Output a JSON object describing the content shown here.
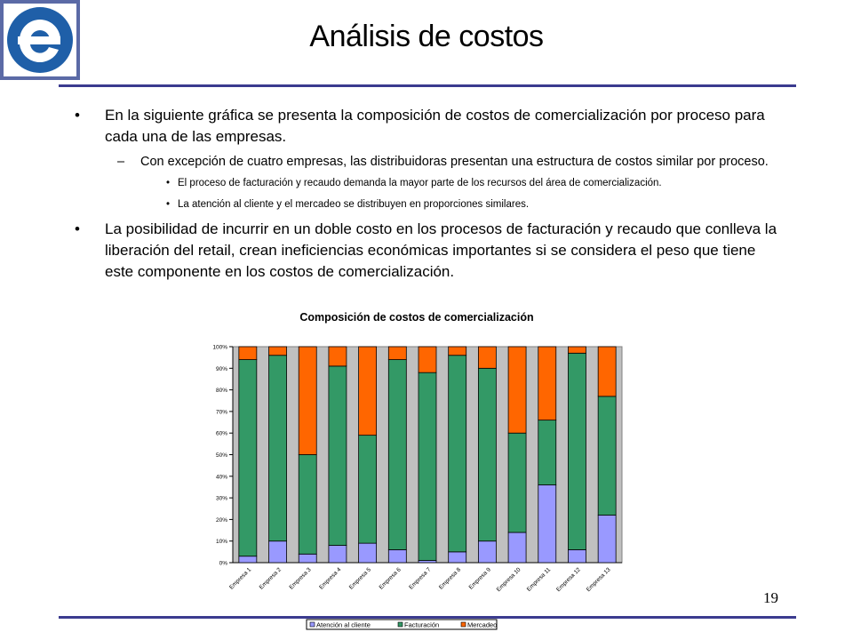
{
  "slide": {
    "title": "Análisis de costos",
    "page_number": "19",
    "bullets": [
      {
        "level": 1,
        "text": "En la siguiente gráfica se presenta la composición de costos de comercialización por proceso para cada una de las empresas."
      },
      {
        "level": 2,
        "text": "Con excepción de cuatro empresas, las distribuidoras presentan una estructura de costos similar por proceso."
      },
      {
        "level": 3,
        "text": "El proceso de facturación y recaudo demanda la mayor parte de los recursos del área de comercialización."
      },
      {
        "level": 3,
        "text": "La atención al cliente y el mercadeo se distribuyen en proporciones similares."
      },
      {
        "level": 1,
        "text": "La posibilidad de incurrir en un doble costo en los procesos de facturación y recaudo que conlleva la liberación del retail, crean ineficiencias económicas importantes si se considera el peso que tiene este componente en los costos de comercialización."
      }
    ],
    "colors": {
      "rule": "#3b3b8f",
      "logo_blue": "#1f5fa8",
      "logo_frame": "#5b6aa6"
    }
  },
  "chart_data": {
    "type": "bar",
    "stacked": true,
    "title": "Composición de costos de comercialización",
    "categories": [
      "Empresa 1",
      "Empresa 2",
      "Empresa 3",
      "Empresa 4",
      "Empresa 5",
      "Empresa 6",
      "Empresa 7",
      "Empresa 8",
      "Empresa 9",
      "Empresa 10",
      "Empresa 11",
      "Empresa 12",
      "Empresa 13"
    ],
    "series": [
      {
        "name": "Atención al cliente",
        "color": "#9999ff",
        "values": [
          3,
          10,
          4,
          8,
          9,
          6,
          1,
          5,
          10,
          14,
          36,
          6,
          22
        ]
      },
      {
        "name": "Facturación",
        "color": "#339966",
        "values": [
          91,
          86,
          46,
          83,
          50,
          88,
          87,
          91,
          80,
          46,
          30,
          91,
          55
        ]
      },
      {
        "name": "Mercadeo",
        "color": "#ff6600",
        "values": [
          6,
          4,
          50,
          9,
          41,
          6,
          12,
          4,
          10,
          40,
          34,
          3,
          23
        ]
      }
    ],
    "yticks": [
      "0%",
      "10%",
      "20%",
      "30%",
      "40%",
      "50%",
      "60%",
      "70%",
      "80%",
      "90%",
      "100%"
    ],
    "ylim": [
      0,
      100
    ],
    "plot_background": "#c0c0c0",
    "legend_position": "bottom"
  }
}
